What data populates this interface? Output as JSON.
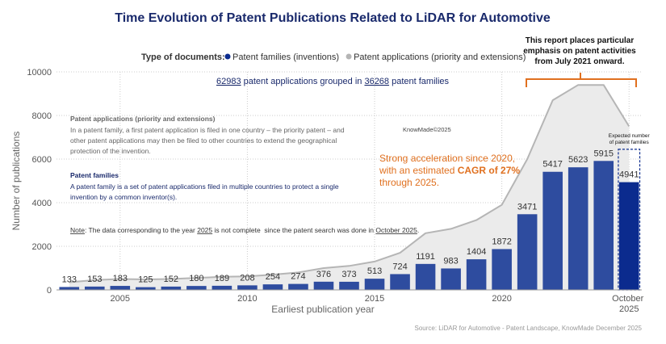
{
  "chart_data": {
    "type": "bar",
    "title": "Time Evolution of Patent Publications Related to LiDAR for Automotive",
    "legend_title": "Type of documents:",
    "x": [
      2003,
      2004,
      2005,
      2006,
      2007,
      2008,
      2009,
      2010,
      2011,
      2012,
      2013,
      2014,
      2015,
      2016,
      2017,
      2018,
      2019,
      2020,
      2021,
      2022,
      2023,
      2024,
      2025
    ],
    "series": [
      {
        "name": "Patent families (inventions)",
        "color": "#2e4c9f",
        "partial_color": "#0b2b8e",
        "values": [
          133,
          153,
          183,
          125,
          152,
          180,
          189,
          208,
          254,
          274,
          376,
          373,
          513,
          724,
          1191,
          983,
          1404,
          1872,
          3471,
          5417,
          5623,
          5915,
          4941
        ]
      },
      {
        "name": "Patent applications (priority and extensions)",
        "color": "#b5b5b5",
        "type": "area",
        "values": [
          350,
          450,
          500,
          480,
          500,
          550,
          600,
          620,
          700,
          800,
          1000,
          1100,
          1300,
          1700,
          2600,
          2800,
          3200,
          3900,
          6000,
          8700,
          9400,
          9400,
          7500
        ]
      }
    ],
    "xlim": [
      2002.5,
      2025.5
    ],
    "xticks": [
      2005,
      2010,
      2015,
      2020,
      {
        "value": 2025,
        "label": "October 2025"
      }
    ],
    "ylim": [
      0,
      10000
    ],
    "yticks": [
      0,
      2000,
      4000,
      6000,
      8000,
      10000
    ],
    "grid": true,
    "xlabel": "Earliest publication year",
    "ylabel": "Number of publications",
    "expected": {
      "lines": [
        "Expected number",
        "of patent families"
      ],
      "value": 6450
    },
    "summary": [
      "62983",
      " patent applications grouped in ",
      "36268",
      " patent families"
    ],
    "definitions": {
      "applications_title": "Patent applications (priority and extensions)",
      "applications_lines": [
        "In a patent family, a first patent application is filed in one country – the priority patent – and",
        "other patent applications may then be filed to other countries to extend the geographical",
        "protection of the invention."
      ],
      "families_title": "Patent families",
      "families_lines": [
        "A patent family is a set of patent applications filed in multiple countries to protect a single",
        "invention by a common inventor(s)."
      ]
    },
    "note": [
      "Note",
      ": The data corresponding to the year ",
      "2025",
      " is not complete  since the patent search was done in ",
      "October 2025",
      "."
    ],
    "watermark": "KnowMade©2025",
    "acceleration": [
      "Strong acceleration since 2020,",
      "with an estimated ",
      "CAGR of 27%",
      "through 2025."
    ],
    "callout": [
      "This report places particular",
      "emphasis on patent activities",
      "from July 2021 onward."
    ],
    "source": "Source: LiDAR for Automotive - Patent Landscape, KnowMade December 2025"
  }
}
